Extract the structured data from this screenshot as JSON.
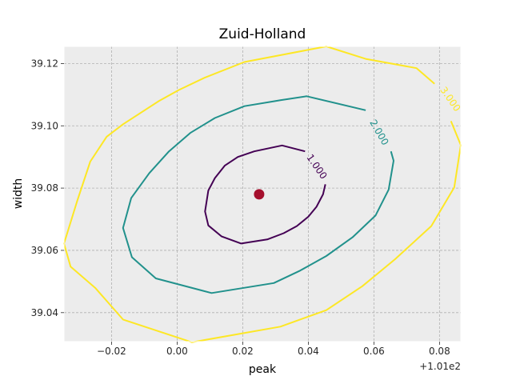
{
  "chart_data": {
    "type": "contour",
    "title": "Zuid-Holland",
    "xlabel": "peak",
    "ylabel": "width",
    "x_offset_label": "+1.01e2",
    "xlim": [
      100.9655,
      101.0865
    ],
    "ylim": [
      39.0307,
      39.1255
    ],
    "x_ticks": [
      100.98,
      101.0,
      101.02,
      101.04,
      101.06,
      101.08
    ],
    "x_tick_labels": [
      "−0.02",
      "0.00",
      "0.02",
      "0.04",
      "0.06",
      "0.08"
    ],
    "y_ticks": [
      39.04,
      39.06,
      39.08,
      39.1,
      39.12
    ],
    "y_tick_labels": [
      "39.04",
      "39.06",
      "39.08",
      "39.10",
      "39.12"
    ],
    "grid": true,
    "background": "#ececec",
    "marker": {
      "x": 101.025,
      "y": 39.078,
      "color": "#a50f2d"
    },
    "contours": [
      {
        "level": "1.000",
        "color": "#440154",
        "label_at": [
          101.0425,
          39.0868
        ],
        "label_angle": 55,
        "points": [
          [
            101.039,
            39.0918
          ],
          [
            101.032,
            39.0937
          ],
          [
            101.0235,
            39.0918
          ],
          [
            101.0185,
            39.09
          ],
          [
            101.0145,
            39.0872
          ],
          [
            101.0115,
            39.0832
          ],
          [
            101.0095,
            39.0792
          ],
          [
            101.0085,
            39.0725
          ],
          [
            101.0095,
            39.068
          ],
          [
            101.0135,
            39.0645
          ],
          [
            101.0195,
            39.0622
          ],
          [
            101.0275,
            39.0635
          ],
          [
            101.0325,
            39.0655
          ],
          [
            101.0365,
            39.0678
          ],
          [
            101.04,
            39.0708
          ],
          [
            101.0425,
            39.074
          ],
          [
            101.0445,
            39.078
          ],
          [
            101.0452,
            39.0812
          ]
        ]
      },
      {
        "level": "2.000",
        "color": "#21918c",
        "label_at": [
          101.0615,
          39.0978
        ],
        "label_angle": 60,
        "points": [
          [
            101.0575,
            39.105
          ],
          [
            101.0395,
            39.1095
          ],
          [
            101.0315,
            39.1082
          ],
          [
            101.0205,
            39.1063
          ],
          [
            101.0115,
            39.1025
          ],
          [
            101.004,
            39.0977
          ],
          [
            100.9975,
            39.0918
          ],
          [
            100.9915,
            39.0848
          ],
          [
            100.986,
            39.0768
          ],
          [
            100.9835,
            39.0672
          ],
          [
            100.9862,
            39.0578
          ],
          [
            100.9935,
            39.051
          ],
          [
            101.0105,
            39.0463
          ],
          [
            101.0295,
            39.0495
          ],
          [
            101.0375,
            39.0535
          ],
          [
            101.0455,
            39.0582
          ],
          [
            101.0535,
            39.0642
          ],
          [
            101.0605,
            39.0712
          ],
          [
            101.0645,
            39.0795
          ],
          [
            101.066,
            39.0888
          ],
          [
            101.0652,
            39.0918
          ]
        ]
      },
      {
        "level": "3.000",
        "color": "#fde725",
        "label_at": [
          101.0832,
          39.1085
        ],
        "label_angle": 55,
        "points": [
          [
            101.0785,
            39.1135
          ],
          [
            101.073,
            39.1185
          ],
          [
            101.0575,
            39.1215
          ],
          [
            101.0455,
            39.1255
          ],
          [
            101.0405,
            39.1245
          ],
          [
            101.0205,
            39.1205
          ],
          [
            101.0085,
            39.1155
          ],
          [
            101.0005,
            39.1115
          ],
          [
            100.9945,
            39.108
          ],
          [
            100.9835,
            39.1005
          ],
          [
            100.9785,
            39.0965
          ],
          [
            100.9735,
            39.0885
          ],
          [
            100.9695,
            39.0758
          ],
          [
            100.9655,
            39.0622
          ],
          [
            100.9675,
            39.0548
          ],
          [
            100.975,
            39.048
          ],
          [
            100.9835,
            39.0378
          ],
          [
            101.0045,
            39.0305
          ],
          [
            101.0315,
            39.0355
          ],
          [
            101.0455,
            39.0408
          ],
          [
            101.0565,
            39.0485
          ],
          [
            101.0665,
            39.0572
          ],
          [
            101.0775,
            39.0678
          ],
          [
            101.0845,
            39.0802
          ],
          [
            101.0865,
            39.0938
          ],
          [
            101.0835,
            39.1015
          ]
        ]
      }
    ]
  }
}
